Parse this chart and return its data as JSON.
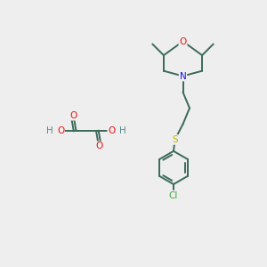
{
  "bg_color": "#eeeeee",
  "atom_colors": {
    "C": "#3a6a5a",
    "O": "#ee1111",
    "N": "#1111ee",
    "S": "#bbbb00",
    "Cl": "#44aa44",
    "H": "#558888"
  },
  "bond_color": "#3a6a5a",
  "figsize": [
    3.0,
    3.0
  ],
  "dpi": 100
}
